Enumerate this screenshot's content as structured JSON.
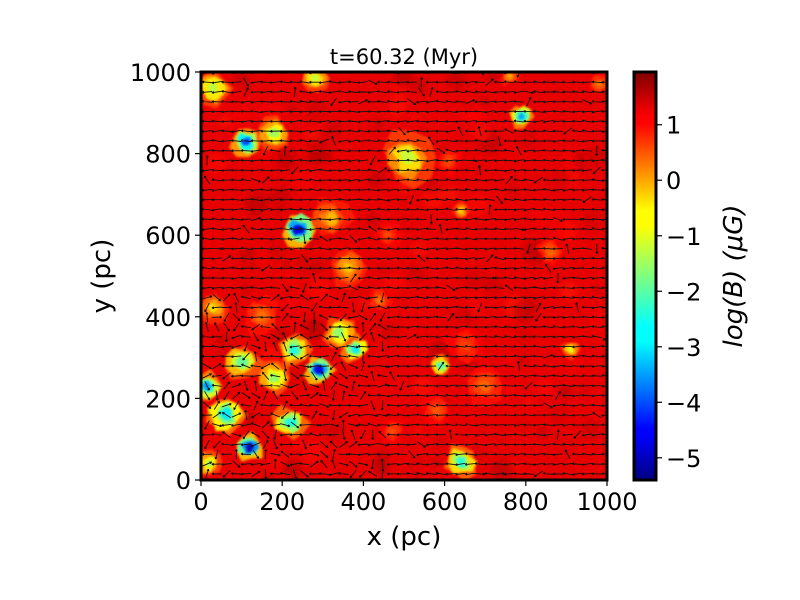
{
  "chart_data": {
    "type": "heatmap",
    "title": "t=60.32 (Myr)",
    "xlabel": "x (pc)",
    "ylabel": "y (pc)",
    "xlim": [
      0,
      1000
    ],
    "ylim": [
      0,
      1000
    ],
    "x_ticks": [
      "0",
      "200",
      "400",
      "600",
      "800",
      "1000"
    ],
    "y_ticks": [
      "0",
      "200",
      "400",
      "600",
      "800",
      "1000"
    ],
    "colorbar": {
      "label": "log(B) (μG)",
      "colormap": "jet",
      "vmin": -5.4,
      "vmax": 1.95,
      "ticks": [
        "1",
        "0",
        "−1",
        "−2",
        "−3",
        "−4",
        "−5"
      ],
      "tick_values": [
        1,
        0,
        -1,
        -2,
        -3,
        -4,
        -5
      ]
    },
    "background_level": 1.2,
    "field_vectors": "quiver arrows, predominantly pointing in the -x direction (leftward)",
    "features": [
      {
        "x": 30,
        "y": 960,
        "level": -1.3,
        "r": 28
      },
      {
        "x": 110,
        "y": 830,
        "level": -4.0,
        "r": 22
      },
      {
        "x": 180,
        "y": 850,
        "level": -1.5,
        "r": 26
      },
      {
        "x": 280,
        "y": 985,
        "level": -1.2,
        "r": 22
      },
      {
        "x": 510,
        "y": 790,
        "level": -1.2,
        "r": 40
      },
      {
        "x": 790,
        "y": 890,
        "level": -3.3,
        "r": 18
      },
      {
        "x": 240,
        "y": 615,
        "level": -4.8,
        "r": 26
      },
      {
        "x": 320,
        "y": 640,
        "level": -0.3,
        "r": 30
      },
      {
        "x": 640,
        "y": 660,
        "level": -0.5,
        "r": 14
      },
      {
        "x": 360,
        "y": 520,
        "level": -0.4,
        "r": 28
      },
      {
        "x": 380,
        "y": 320,
        "level": -2.8,
        "r": 22
      },
      {
        "x": 340,
        "y": 360,
        "level": -1.6,
        "r": 26
      },
      {
        "x": 230,
        "y": 320,
        "level": -2.5,
        "r": 26
      },
      {
        "x": 290,
        "y": 270,
        "level": -4.7,
        "r": 22
      },
      {
        "x": 180,
        "y": 250,
        "level": -1.6,
        "r": 26
      },
      {
        "x": 100,
        "y": 290,
        "level": -1.9,
        "r": 28
      },
      {
        "x": 15,
        "y": 230,
        "level": -3.4,
        "r": 22
      },
      {
        "x": 60,
        "y": 160,
        "level": -2.8,
        "r": 30
      },
      {
        "x": 120,
        "y": 80,
        "level": -5.1,
        "r": 22
      },
      {
        "x": 220,
        "y": 140,
        "level": -2.5,
        "r": 26
      },
      {
        "x": 20,
        "y": 40,
        "level": -1.4,
        "r": 20
      },
      {
        "x": 640,
        "y": 45,
        "level": -2.4,
        "r": 26
      },
      {
        "x": 590,
        "y": 280,
        "level": -2.3,
        "r": 16
      },
      {
        "x": 910,
        "y": 320,
        "level": -1.0,
        "r": 14
      },
      {
        "x": 760,
        "y": 990,
        "level": -0.2,
        "r": 14
      },
      {
        "x": 980,
        "y": 970,
        "level": 0.2,
        "r": 16
      },
      {
        "x": 700,
        "y": 230,
        "level": 0.3,
        "r": 30
      },
      {
        "x": 580,
        "y": 170,
        "level": 0.4,
        "r": 22
      },
      {
        "x": 470,
        "y": 120,
        "level": 0.5,
        "r": 20
      },
      {
        "x": 440,
        "y": 440,
        "level": 0.2,
        "r": 18
      },
      {
        "x": 460,
        "y": 600,
        "level": 0.5,
        "r": 18
      },
      {
        "x": 610,
        "y": 780,
        "level": 0.5,
        "r": 22
      },
      {
        "x": 860,
        "y": 560,
        "level": 0.3,
        "r": 20
      },
      {
        "x": 650,
        "y": 330,
        "level": 0.6,
        "r": 30
      },
      {
        "x": 30,
        "y": 420,
        "level": -0.6,
        "r": 22
      },
      {
        "x": 150,
        "y": 400,
        "level": 0.2,
        "r": 28
      }
    ]
  }
}
